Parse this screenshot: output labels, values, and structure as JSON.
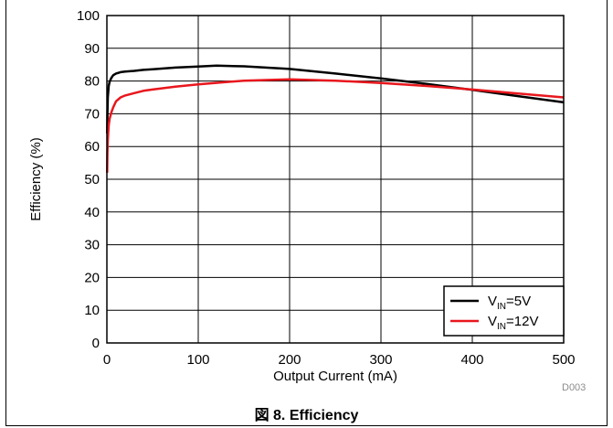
{
  "caption": "図 8. Efficiency",
  "figure_id": "D003",
  "chart_data": {
    "type": "line",
    "title": "",
    "xlabel": "Output Current (mA)",
    "ylabel": "Efficiency (%)",
    "xlim": [
      0,
      500
    ],
    "ylim": [
      0,
      100
    ],
    "x_ticks": [
      0,
      100,
      200,
      300,
      400,
      500
    ],
    "y_ticks": [
      0,
      10,
      20,
      30,
      40,
      50,
      60,
      70,
      80,
      90,
      100
    ],
    "grid": true,
    "legend_position": "bottom-right",
    "series": [
      {
        "name": "VIN=5V",
        "legend_main": "V",
        "legend_sub": "IN",
        "legend_rest": "=5V",
        "color": "#000000",
        "x": [
          0.3,
          0.6,
          1,
          2,
          3,
          5,
          7,
          10,
          15,
          20,
          30,
          40,
          50,
          75,
          100,
          120,
          150,
          200,
          250,
          300,
          350,
          400,
          450,
          500
        ],
        "y": [
          64,
          70,
          75,
          78.5,
          79.8,
          81,
          81.8,
          82.3,
          82.7,
          82.9,
          83.1,
          83.4,
          83.6,
          84.1,
          84.4,
          84.7,
          84.5,
          83.7,
          82.3,
          80.8,
          79.1,
          77.3,
          75.4,
          73.5
        ]
      },
      {
        "name": "VIN=12V",
        "legend_main": "V",
        "legend_sub": "IN",
        "legend_rest": "=12V",
        "color": "#e8171d",
        "x": [
          0.3,
          0.6,
          1,
          2,
          3,
          5,
          7,
          10,
          15,
          20,
          30,
          40,
          50,
          75,
          100,
          150,
          200,
          250,
          300,
          350,
          400,
          450,
          500
        ],
        "y": [
          52,
          58,
          62,
          66.5,
          68.5,
          70.5,
          72,
          73.8,
          75,
          75.6,
          76.3,
          77,
          77.4,
          78.3,
          79,
          80.1,
          80.5,
          80.1,
          79.4,
          78.5,
          77.4,
          76.2,
          75
        ]
      }
    ]
  }
}
